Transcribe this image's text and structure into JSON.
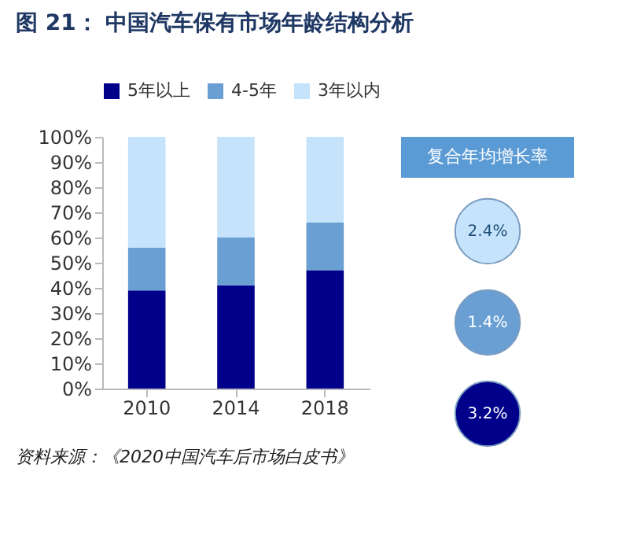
{
  "chart_data": [
    {
      "type": "bar",
      "title": "图 21：  中国汽车保有市场年龄结构分析",
      "stacked": true,
      "legend": "top",
      "grid": false,
      "categories": [
        "2010",
        "2014",
        "2018"
      ],
      "series": [
        {
          "name": "5年以上",
          "color": "#00008b",
          "values": [
            39,
            41,
            47
          ]
        },
        {
          "name": "4-5年",
          "color": "#6a9fd4",
          "values": [
            17,
            19,
            19
          ]
        },
        {
          "name": "3年以内",
          "color": "#c5e3fb",
          "values": [
            44,
            40,
            34
          ]
        }
      ],
      "ylim": [
        0,
        100
      ],
      "yticks": [
        {
          "value": 0,
          "label": "0%"
        },
        {
          "value": 10,
          "label": "10%"
        },
        {
          "value": 20,
          "label": "20%"
        },
        {
          "value": 30,
          "label": "30%"
        },
        {
          "value": 40,
          "label": "40%"
        },
        {
          "value": 50,
          "label": "50%"
        },
        {
          "value": 60,
          "label": "60%"
        },
        {
          "value": 70,
          "label": "70%"
        },
        {
          "value": 80,
          "label": "80%"
        },
        {
          "value": 90,
          "label": "90%"
        },
        {
          "value": 100,
          "label": "100%"
        }
      ],
      "annotations": [
        "资料来源：《2020中国汽车后市场白皮书》"
      ]
    },
    {
      "type": "other",
      "title": "复合年均增长率",
      "annotations": [
        "2.4%",
        "1.4%",
        "3.2%"
      ],
      "colors": [
        "#c5e3fb",
        "#6a9fd4",
        "#00008b"
      ]
    }
  ]
}
